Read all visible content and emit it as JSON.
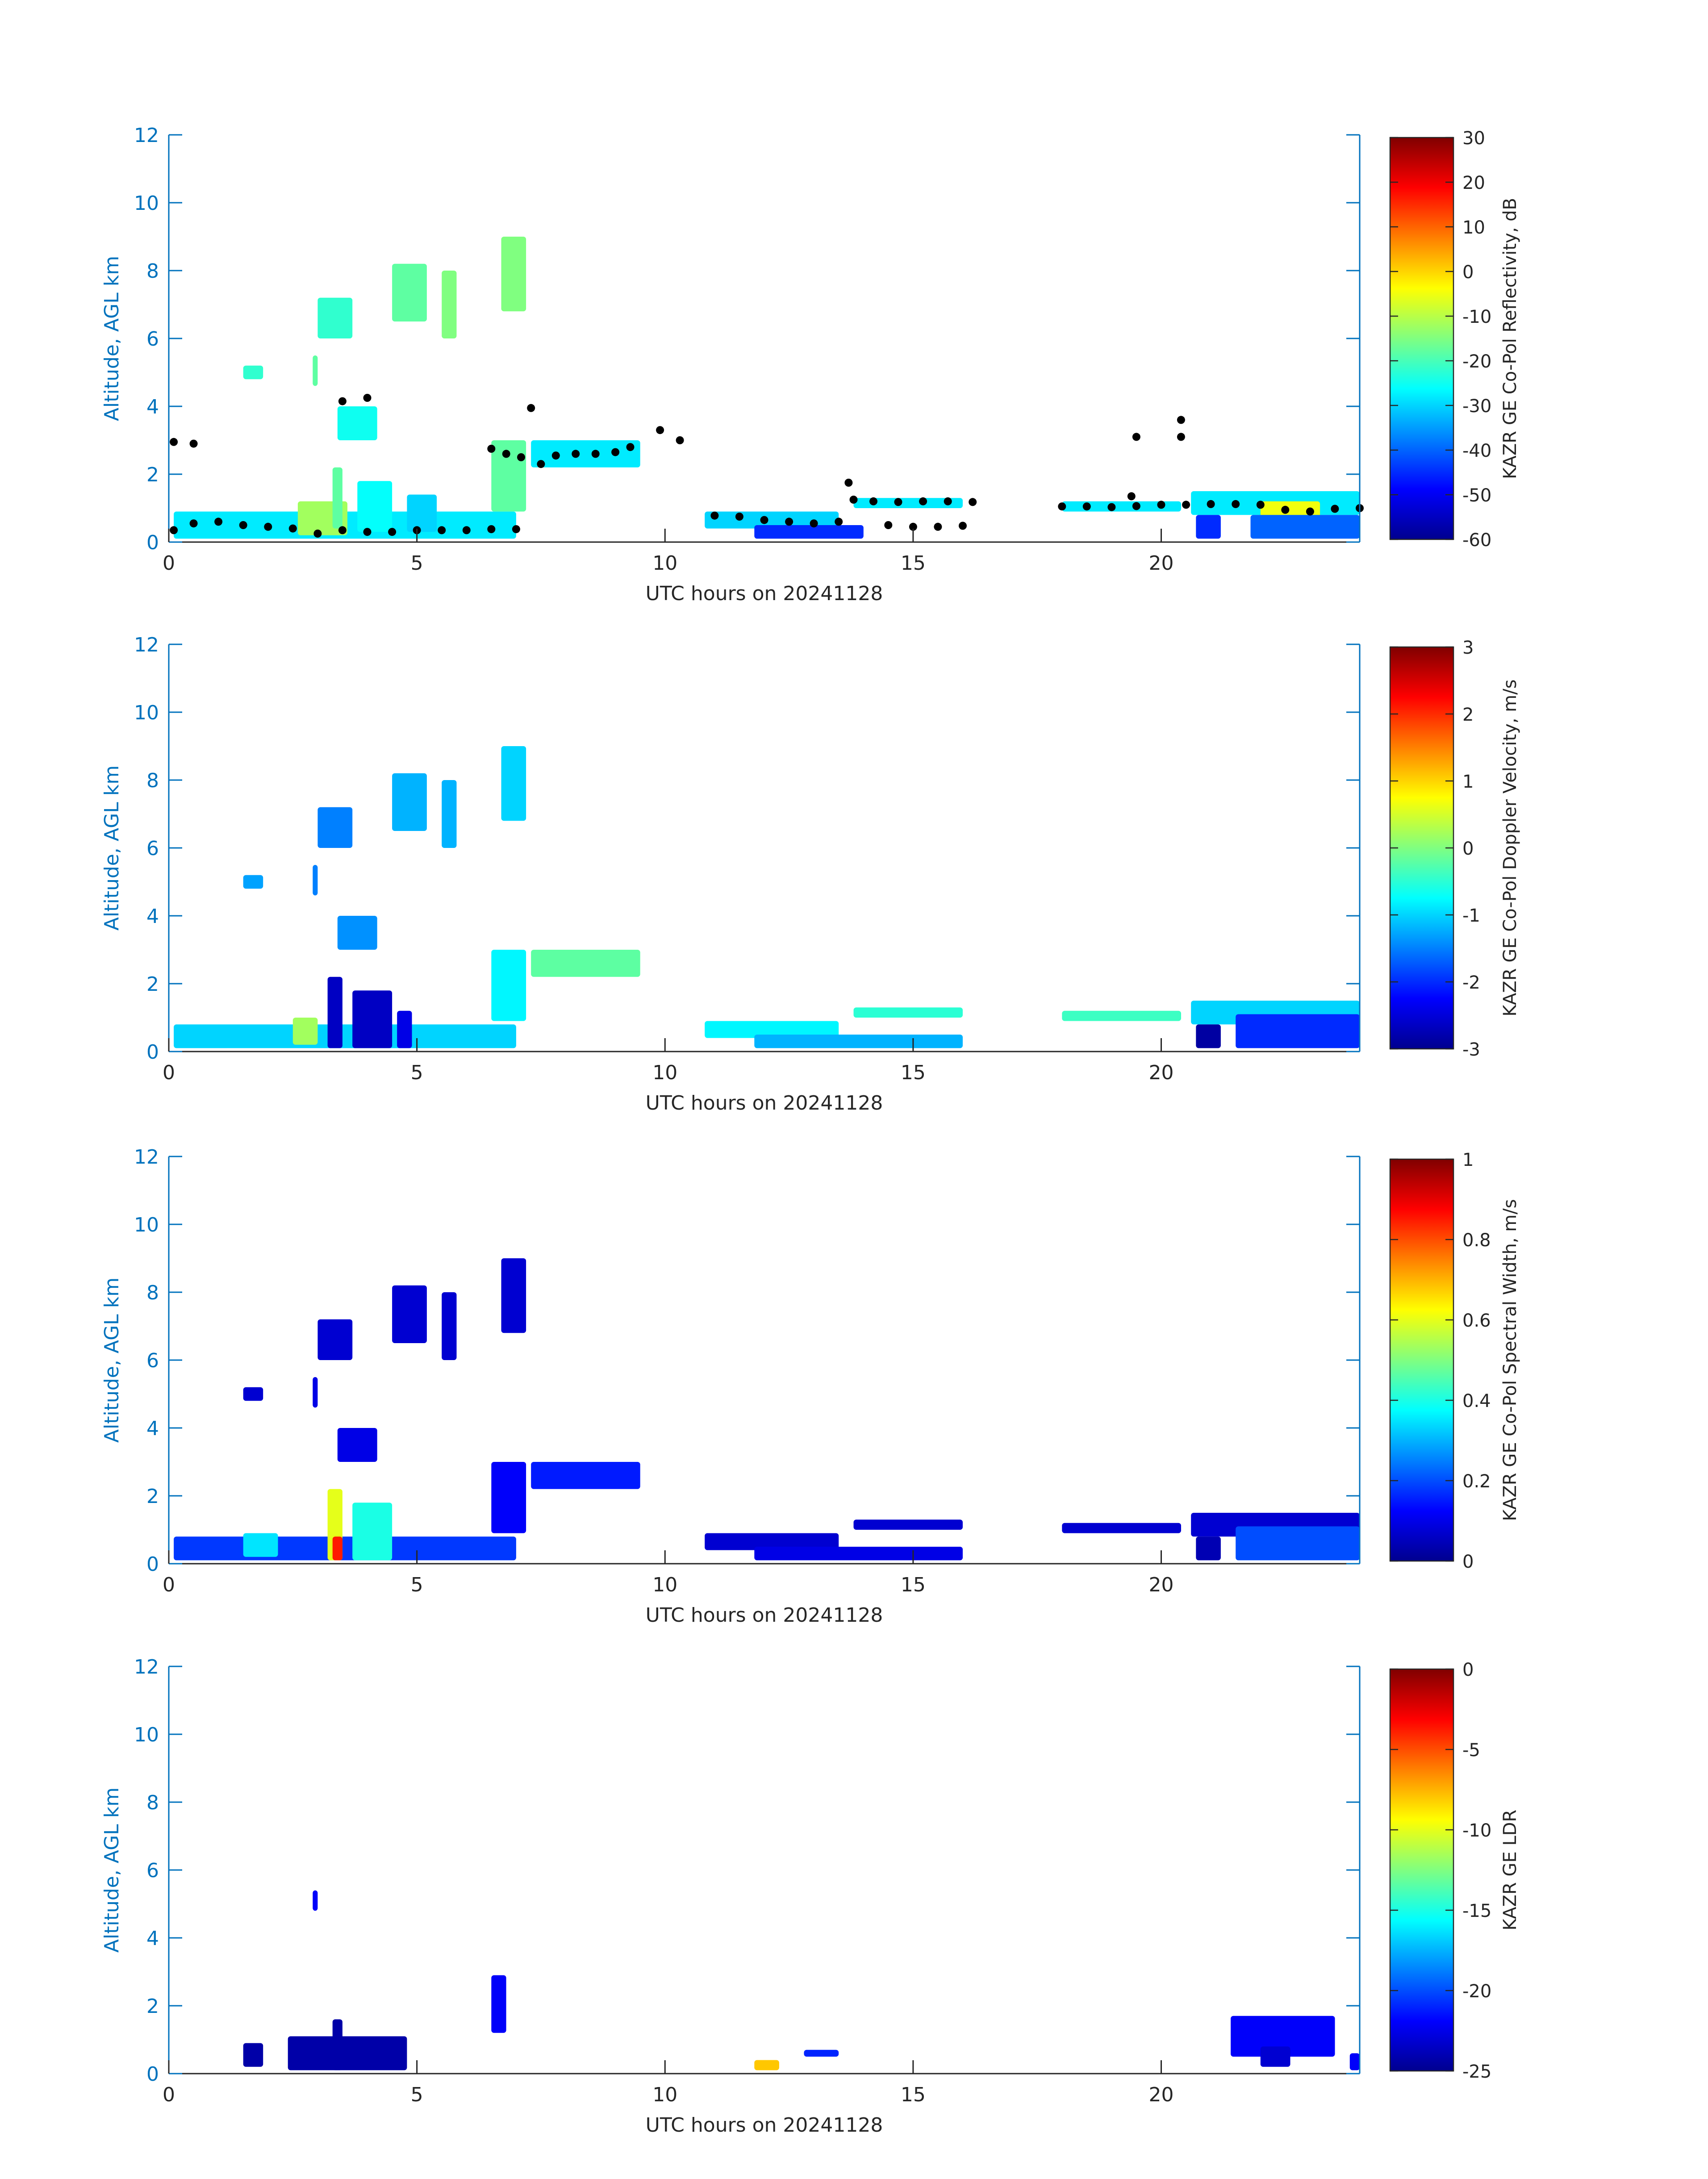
{
  "figure": {
    "colors": {
      "axis_blue": "#0072bd",
      "axis_black": "#262626",
      "overlay_black": "#000000",
      "jet": [
        "#00008f",
        "#0000ff",
        "#0080ff",
        "#00ffff",
        "#80ff80",
        "#ffff00",
        "#ff8000",
        "#ff0000",
        "#800000"
      ]
    }
  },
  "chart_data": [
    {
      "type": "heatmap",
      "xlabel": "UTC hours on 20241128",
      "ylabel": "Altitude, AGL km",
      "xlim": [
        0,
        24
      ],
      "ylim": [
        0,
        12
      ],
      "xticks": [
        "0",
        "5",
        "10",
        "15",
        "20"
      ],
      "yticks": [
        "0",
        "2",
        "4",
        "6",
        "8",
        "10",
        "12"
      ],
      "colorbar": {
        "label": "KAZR GE Co-Pol Reflectivity, dB",
        "range": [
          -60,
          30
        ],
        "ticks": [
          "30",
          "20",
          "10",
          "0",
          "-10",
          "-20",
          "-30",
          "-40",
          "-50",
          "-60"
        ]
      },
      "regions": [
        {
          "x0": 0.1,
          "x1": 7.0,
          "y0": 0.1,
          "y1": 0.9,
          "value": -28
        },
        {
          "x0": 2.6,
          "x1": 3.6,
          "y0": 0.2,
          "y1": 1.2,
          "value": -12
        },
        {
          "x0": 3.3,
          "x1": 3.5,
          "y0": 0.4,
          "y1": 2.2,
          "value": -18
        },
        {
          "x0": 3.8,
          "x1": 4.5,
          "y0": 0.3,
          "y1": 1.8,
          "value": -26
        },
        {
          "x0": 4.8,
          "x1": 5.4,
          "y0": 0.3,
          "y1": 1.4,
          "value": -30
        },
        {
          "x0": 6.5,
          "x1": 7.2,
          "y0": 0.9,
          "y1": 3.0,
          "value": -18
        },
        {
          "x0": 7.3,
          "x1": 9.5,
          "y0": 2.2,
          "y1": 3.0,
          "value": -28
        },
        {
          "x0": 3.0,
          "x1": 3.7,
          "y0": 6.0,
          "y1": 7.2,
          "value": -22
        },
        {
          "x0": 4.5,
          "x1": 5.2,
          "y0": 6.5,
          "y1": 8.2,
          "value": -18
        },
        {
          "x0": 5.5,
          "x1": 5.8,
          "y0": 6.0,
          "y1": 8.0,
          "value": -15
        },
        {
          "x0": 6.7,
          "x1": 7.2,
          "y0": 6.8,
          "y1": 9.0,
          "value": -15
        },
        {
          "x0": 1.5,
          "x1": 1.9,
          "y0": 4.8,
          "y1": 5.2,
          "value": -22
        },
        {
          "x0": 2.9,
          "x1": 3.0,
          "y0": 4.6,
          "y1": 5.5,
          "value": -18
        },
        {
          "x0": 3.4,
          "x1": 4.2,
          "y0": 3.0,
          "y1": 4.0,
          "value": -25
        },
        {
          "x0": 10.8,
          "x1": 13.5,
          "y0": 0.4,
          "y1": 0.9,
          "value": -30
        },
        {
          "x0": 11.8,
          "x1": 14.0,
          "y0": 0.1,
          "y1": 0.5,
          "value": -45
        },
        {
          "x0": 13.8,
          "x1": 16.0,
          "y0": 1.0,
          "y1": 1.3,
          "value": -28
        },
        {
          "x0": 18.0,
          "x1": 20.4,
          "y0": 0.9,
          "y1": 1.2,
          "value": -28
        },
        {
          "x0": 20.6,
          "x1": 24.0,
          "y0": 0.8,
          "y1": 1.5,
          "value": -28
        },
        {
          "x0": 22.0,
          "x1": 23.2,
          "y0": 0.3,
          "y1": 1.2,
          "value": -5
        },
        {
          "x0": 20.7,
          "x1": 21.2,
          "y0": 0.1,
          "y1": 0.8,
          "value": -45
        },
        {
          "x0": 21.8,
          "x1": 24.0,
          "y0": 0.1,
          "y1": 0.8,
          "value": -40
        }
      ],
      "overlay_points": [
        [
          0.1,
          2.95
        ],
        [
          0.5,
          2.9
        ],
        [
          0.1,
          0.35
        ],
        [
          0.5,
          0.55
        ],
        [
          1.0,
          0.6
        ],
        [
          1.5,
          0.5
        ],
        [
          2.0,
          0.45
        ],
        [
          2.5,
          0.4
        ],
        [
          3.0,
          0.25
        ],
        [
          3.5,
          0.35
        ],
        [
          4.0,
          0.3
        ],
        [
          4.5,
          0.3
        ],
        [
          5.0,
          0.35
        ],
        [
          5.5,
          0.35
        ],
        [
          6.0,
          0.35
        ],
        [
          6.5,
          0.38
        ],
        [
          7.0,
          0.38
        ],
        [
          6.5,
          2.75
        ],
        [
          6.8,
          2.6
        ],
        [
          7.1,
          2.5
        ],
        [
          7.5,
          2.3
        ],
        [
          7.8,
          2.55
        ],
        [
          8.2,
          2.6
        ],
        [
          8.6,
          2.6
        ],
        [
          9.0,
          2.65
        ],
        [
          9.3,
          2.8
        ],
        [
          7.3,
          3.95
        ],
        [
          4.0,
          4.25
        ],
        [
          3.5,
          4.15
        ],
        [
          9.9,
          3.3
        ],
        [
          10.3,
          3.0
        ],
        [
          11.0,
          0.78
        ],
        [
          11.5,
          0.75
        ],
        [
          12.0,
          0.65
        ],
        [
          12.5,
          0.6
        ],
        [
          13.0,
          0.55
        ],
        [
          13.5,
          0.6
        ],
        [
          14.5,
          0.5
        ],
        [
          15.0,
          0.45
        ],
        [
          15.5,
          0.45
        ],
        [
          16.0,
          0.48
        ],
        [
          13.8,
          1.25
        ],
        [
          14.2,
          1.2
        ],
        [
          14.7,
          1.18
        ],
        [
          15.2,
          1.2
        ],
        [
          15.7,
          1.2
        ],
        [
          16.2,
          1.18
        ],
        [
          13.7,
          1.75
        ],
        [
          18.0,
          1.05
        ],
        [
          18.5,
          1.05
        ],
        [
          19.0,
          1.03
        ],
        [
          19.5,
          1.06
        ],
        [
          20.0,
          1.1
        ],
        [
          20.5,
          1.1
        ],
        [
          21.0,
          1.12
        ],
        [
          21.5,
          1.12
        ],
        [
          22.0,
          1.1
        ],
        [
          22.5,
          0.95
        ],
        [
          23.0,
          0.9
        ],
        [
          23.5,
          0.98
        ],
        [
          24.0,
          1.0
        ],
        [
          20.4,
          3.6
        ],
        [
          20.4,
          3.1
        ],
        [
          19.5,
          3.1
        ],
        [
          19.4,
          1.35
        ]
      ]
    },
    {
      "type": "heatmap",
      "xlabel": "UTC hours on 20241128",
      "ylabel": "Altitude, AGL km",
      "xlim": [
        0,
        24
      ],
      "ylim": [
        0,
        12
      ],
      "xticks": [
        "0",
        "5",
        "10",
        "15",
        "20"
      ],
      "yticks": [
        "0",
        "2",
        "4",
        "6",
        "8",
        "10",
        "12"
      ],
      "colorbar": {
        "label": "KAZR GE Co-Pol Doppler Velocity, m/s",
        "range": [
          -3,
          3
        ],
        "ticks": [
          "3",
          "2",
          "1",
          "0",
          "-1",
          "-2",
          "-3"
        ]
      },
      "regions": [
        {
          "x0": 0.1,
          "x1": 7.0,
          "y0": 0.1,
          "y1": 0.8,
          "value": -1.0
        },
        {
          "x0": 2.5,
          "x1": 3.0,
          "y0": 0.2,
          "y1": 1.0,
          "value": 0.2
        },
        {
          "x0": 3.2,
          "x1": 3.5,
          "y0": 0.1,
          "y1": 2.2,
          "value": -2.6
        },
        {
          "x0": 3.7,
          "x1": 4.5,
          "y0": 0.1,
          "y1": 1.8,
          "value": -2.6
        },
        {
          "x0": 4.6,
          "x1": 4.9,
          "y0": 0.1,
          "y1": 1.2,
          "value": -2.4
        },
        {
          "x0": 6.5,
          "x1": 7.2,
          "y0": 0.9,
          "y1": 3.0,
          "value": -0.8
        },
        {
          "x0": 7.3,
          "x1": 9.5,
          "y0": 2.2,
          "y1": 3.0,
          "value": -0.2
        },
        {
          "x0": 3.0,
          "x1": 3.7,
          "y0": 6.0,
          "y1": 7.2,
          "value": -1.5
        },
        {
          "x0": 4.5,
          "x1": 5.2,
          "y0": 6.5,
          "y1": 8.2,
          "value": -1.2
        },
        {
          "x0": 5.5,
          "x1": 5.8,
          "y0": 6.0,
          "y1": 8.0,
          "value": -1.2
        },
        {
          "x0": 6.7,
          "x1": 7.2,
          "y0": 6.8,
          "y1": 9.0,
          "value": -1.0
        },
        {
          "x0": 1.5,
          "x1": 1.9,
          "y0": 4.8,
          "y1": 5.2,
          "value": -1.3
        },
        {
          "x0": 2.9,
          "x1": 3.0,
          "y0": 4.6,
          "y1": 5.5,
          "value": -1.5
        },
        {
          "x0": 3.4,
          "x1": 4.2,
          "y0": 3.0,
          "y1": 4.0,
          "value": -1.4
        },
        {
          "x0": 10.8,
          "x1": 13.5,
          "y0": 0.4,
          "y1": 0.9,
          "value": -0.8
        },
        {
          "x0": 11.8,
          "x1": 16.0,
          "y0": 0.1,
          "y1": 0.5,
          "value": -1.2
        },
        {
          "x0": 13.8,
          "x1": 16.0,
          "y0": 1.0,
          "y1": 1.3,
          "value": -0.5
        },
        {
          "x0": 18.0,
          "x1": 20.4,
          "y0": 0.9,
          "y1": 1.2,
          "value": -0.4
        },
        {
          "x0": 20.6,
          "x1": 24.0,
          "y0": 0.8,
          "y1": 1.5,
          "value": -1.0
        },
        {
          "x0": 20.7,
          "x1": 21.2,
          "y0": 0.1,
          "y1": 0.8,
          "value": -2.8
        },
        {
          "x0": 21.5,
          "x1": 24.0,
          "y0": 0.1,
          "y1": 1.1,
          "value": -2.0
        }
      ]
    },
    {
      "type": "heatmap",
      "xlabel": "UTC hours on 20241128",
      "ylabel": "Altitude, AGL km",
      "xlim": [
        0,
        24
      ],
      "ylim": [
        0,
        12
      ],
      "xticks": [
        "0",
        "5",
        "10",
        "15",
        "20"
      ],
      "yticks": [
        "0",
        "2",
        "4",
        "6",
        "8",
        "10",
        "12"
      ],
      "colorbar": {
        "label": "KAZR GE Co-Pol Spectral Width, m/s",
        "range": [
          0,
          1
        ],
        "ticks": [
          "1",
          "0.8",
          "0.6",
          "0.4",
          "0.2",
          "0"
        ]
      },
      "regions": [
        {
          "x0": 0.1,
          "x1": 7.0,
          "y0": 0.1,
          "y1": 0.8,
          "value": 0.18
        },
        {
          "x0": 1.5,
          "x1": 2.2,
          "y0": 0.2,
          "y1": 0.9,
          "value": 0.35
        },
        {
          "x0": 3.2,
          "x1": 3.5,
          "y0": 0.1,
          "y1": 2.2,
          "value": 0.6
        },
        {
          "x0": 3.3,
          "x1": 3.5,
          "y0": 0.1,
          "y1": 0.8,
          "value": 0.85
        },
        {
          "x0": 3.7,
          "x1": 4.5,
          "y0": 0.1,
          "y1": 1.8,
          "value": 0.4
        },
        {
          "x0": 6.5,
          "x1": 7.2,
          "y0": 0.9,
          "y1": 3.0,
          "value": 0.12
        },
        {
          "x0": 7.3,
          "x1": 9.5,
          "y0": 2.2,
          "y1": 3.0,
          "value": 0.15
        },
        {
          "x0": 3.0,
          "x1": 3.7,
          "y0": 6.0,
          "y1": 7.2,
          "value": 0.08
        },
        {
          "x0": 4.5,
          "x1": 5.2,
          "y0": 6.5,
          "y1": 8.2,
          "value": 0.08
        },
        {
          "x0": 5.5,
          "x1": 5.8,
          "y0": 6.0,
          "y1": 8.0,
          "value": 0.08
        },
        {
          "x0": 6.7,
          "x1": 7.2,
          "y0": 6.8,
          "y1": 9.0,
          "value": 0.08
        },
        {
          "x0": 1.5,
          "x1": 1.9,
          "y0": 4.8,
          "y1": 5.2,
          "value": 0.08
        },
        {
          "x0": 2.9,
          "x1": 3.0,
          "y0": 4.6,
          "y1": 5.5,
          "value": 0.1
        },
        {
          "x0": 3.4,
          "x1": 4.2,
          "y0": 3.0,
          "y1": 4.0,
          "value": 0.1
        },
        {
          "x0": 10.8,
          "x1": 13.5,
          "y0": 0.4,
          "y1": 0.9,
          "value": 0.08
        },
        {
          "x0": 11.8,
          "x1": 16.0,
          "y0": 0.1,
          "y1": 0.5,
          "value": 0.1
        },
        {
          "x0": 13.8,
          "x1": 16.0,
          "y0": 1.0,
          "y1": 1.3,
          "value": 0.08
        },
        {
          "x0": 18.0,
          "x1": 20.4,
          "y0": 0.9,
          "y1": 1.2,
          "value": 0.08
        },
        {
          "x0": 20.6,
          "x1": 24.0,
          "y0": 0.8,
          "y1": 1.5,
          "value": 0.08
        },
        {
          "x0": 20.7,
          "x1": 21.2,
          "y0": 0.1,
          "y1": 0.8,
          "value": 0.05
        },
        {
          "x0": 21.5,
          "x1": 24.0,
          "y0": 0.1,
          "y1": 1.1,
          "value": 0.2
        }
      ]
    },
    {
      "type": "heatmap",
      "xlabel": "UTC hours on 20241128",
      "ylabel": "Altitude, AGL km",
      "xlim": [
        0,
        24
      ],
      "ylim": [
        0,
        12
      ],
      "xticks": [
        "0",
        "5",
        "10",
        "15",
        "20"
      ],
      "yticks": [
        "0",
        "2",
        "4",
        "6",
        "8",
        "10",
        "12"
      ],
      "colorbar": {
        "label": "KAZR GE LDR",
        "range": [
          -25,
          0
        ],
        "ticks": [
          "0",
          "-5",
          "-10",
          "-15",
          "-20",
          "-25"
        ]
      },
      "regions": [
        {
          "x0": 1.5,
          "x1": 1.9,
          "y0": 0.2,
          "y1": 0.9,
          "value": -24
        },
        {
          "x0": 2.4,
          "x1": 4.8,
          "y0": 0.1,
          "y1": 1.1,
          "value": -24
        },
        {
          "x0": 3.3,
          "x1": 3.5,
          "y0": 0.1,
          "y1": 1.6,
          "value": -24
        },
        {
          "x0": 6.5,
          "x1": 6.8,
          "y0": 1.2,
          "y1": 2.9,
          "value": -22
        },
        {
          "x0": 2.9,
          "x1": 3.0,
          "y0": 4.8,
          "y1": 5.4,
          "value": -22
        },
        {
          "x0": 11.8,
          "x1": 12.3,
          "y0": 0.1,
          "y1": 0.4,
          "value": -8
        },
        {
          "x0": 12.8,
          "x1": 13.5,
          "y0": 0.5,
          "y1": 0.7,
          "value": -21
        },
        {
          "x0": 21.4,
          "x1": 23.5,
          "y0": 0.5,
          "y1": 1.7,
          "value": -22
        },
        {
          "x0": 22.0,
          "x1": 22.6,
          "y0": 0.2,
          "y1": 0.8,
          "value": -23
        },
        {
          "x0": 23.8,
          "x1": 24.0,
          "y0": 0.1,
          "y1": 0.6,
          "value": -22
        }
      ]
    }
  ]
}
